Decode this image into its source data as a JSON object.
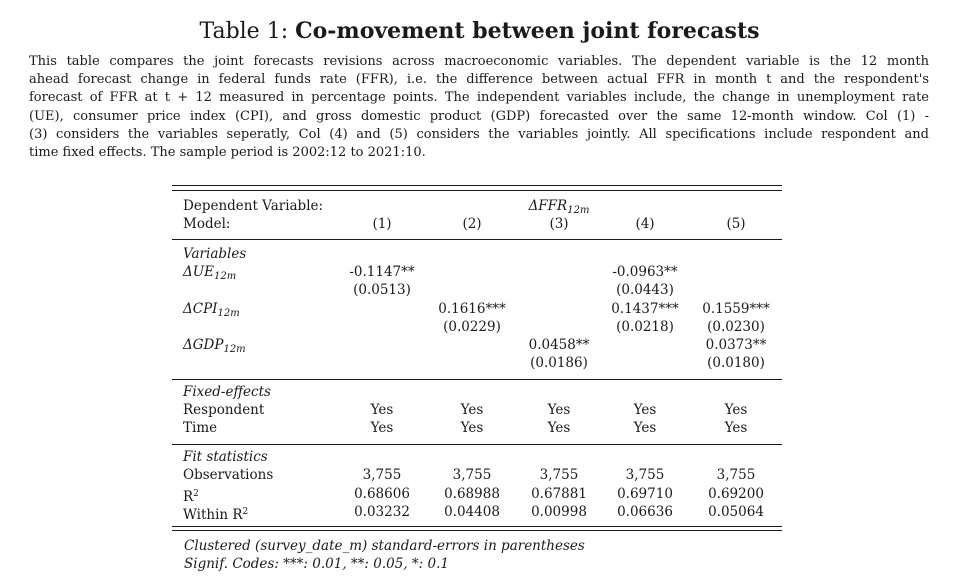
{
  "title": {
    "prefix": "Table 1:",
    "text": "Co-movement between joint forecasts"
  },
  "caption": [
    "This table compares the joint forecasts revisions across macroeconomic variables. The dependent variable is the 12 month",
    "ahead forecast change in federal funds rate (FFR), i.e. the difference between actual FFR in month t and the respondent's",
    "forecast of FFR at t + 12 measured in percentage points. The independent variables include, the change in unemployment rate",
    "(UE), consumer price index (CPI), and gross domestic product (GDP) forecasted over the same 12-month window. Col (1) -",
    "(3) considers the variables seperatly, Col (4) and (5) considers the variables jointly. All specifications include respondent and",
    "time fixed effects. The sample period is 2002:12 to 2021:10."
  ],
  "table": {
    "dep_var_label": "Dependent Variable:",
    "dep_var": {
      "base": "ΔFFR",
      "sub": "12m"
    },
    "model_label": "Model:",
    "models": [
      "(1)",
      "(2)",
      "(3)",
      "(4)",
      "(5)"
    ],
    "variables_header": "Variables",
    "variables": [
      {
        "name": {
          "base": "ΔUE",
          "sub": "12m"
        },
        "coef": [
          "-0.1147**",
          "",
          "",
          "-0.0963**",
          ""
        ],
        "se": [
          "(0.0513)",
          "",
          "",
          "(0.0443)",
          ""
        ]
      },
      {
        "name": {
          "base": "ΔCPI",
          "sub": "12m"
        },
        "coef": [
          "",
          "0.1616***",
          "",
          "0.1437***",
          "0.1559***"
        ],
        "se": [
          "",
          "(0.0229)",
          "",
          "(0.0218)",
          "(0.0230)"
        ]
      },
      {
        "name": {
          "base": "ΔGDP",
          "sub": "12m"
        },
        "coef": [
          "",
          "",
          "0.0458**",
          "",
          "0.0373**"
        ],
        "se": [
          "",
          "",
          "(0.0186)",
          "",
          "(0.0180)"
        ]
      }
    ],
    "fixed_effects_header": "Fixed-effects",
    "fixed_effects": [
      {
        "label": "Respondent",
        "values": [
          "Yes",
          "Yes",
          "Yes",
          "Yes",
          "Yes"
        ]
      },
      {
        "label": "Time",
        "values": [
          "Yes",
          "Yes",
          "Yes",
          "Yes",
          "Yes"
        ]
      }
    ],
    "fit_header": "Fit statistics",
    "fit": [
      {
        "label": "Observations",
        "values": [
          "3,755",
          "3,755",
          "3,755",
          "3,755",
          "3,755"
        ]
      },
      {
        "label": "R",
        "label_sup": "2",
        "values": [
          "0.68606",
          "0.68988",
          "0.67881",
          "0.69710",
          "0.69200"
        ]
      },
      {
        "label": "Within R",
        "label_sup": "2",
        "values": [
          "0.03232",
          "0.04408",
          "0.00998",
          "0.06636",
          "0.05064"
        ]
      }
    ]
  },
  "footnotes": [
    "Clustered (survey_date_m) standard-errors in parentheses",
    "Signif. Codes: ***: 0.01, **: 0.05, *: 0.1"
  ]
}
